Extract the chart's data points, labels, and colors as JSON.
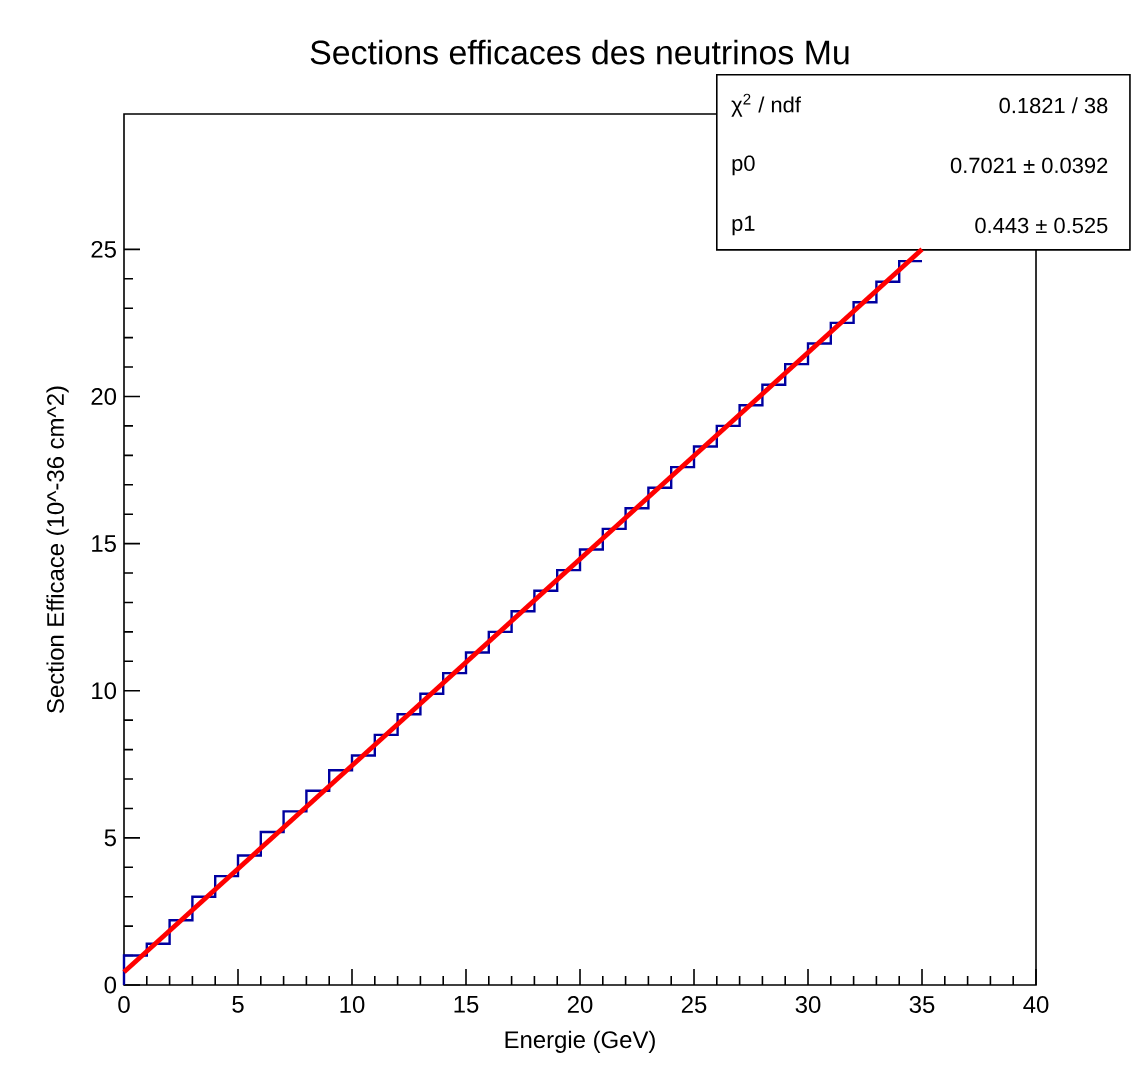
{
  "chart_data": {
    "type": "histogram",
    "title": "Sections efficaces des neutrinos Mu",
    "xlabel": "Energie (GeV)",
    "ylabel": "Section Efficace (10^-36 cm^2)",
    "bins": [
      0,
      1,
      2,
      3,
      4,
      5,
      6,
      7,
      8,
      9,
      10,
      11,
      12,
      13,
      14,
      15,
      16,
      17,
      18,
      19,
      20,
      21,
      22,
      23,
      24,
      25,
      26,
      27,
      28,
      29,
      30,
      31,
      32,
      33,
      34,
      35
    ],
    "series": [
      {
        "color": "#0000a0",
        "values": [
          1.0,
          1.4,
          2.2,
          3.0,
          3.7,
          4.4,
          5.2,
          5.9,
          6.6,
          7.3,
          7.8,
          8.5,
          9.2,
          9.9,
          10.6,
          11.3,
          12.0,
          12.7,
          13.4,
          14.1,
          14.8,
          15.5,
          16.2,
          16.9,
          17.6,
          18.3,
          19.0,
          19.7,
          20.4,
          21.1,
          21.8,
          22.5,
          23.2,
          23.9,
          24.6
        ]
      },
      {
        "type": "line",
        "color": "#ff0000",
        "x": [
          0,
          35
        ],
        "values": [
          0.44,
          25.0
        ]
      }
    ],
    "xlim": [
      0,
      40
    ],
    "ylim": [
      0,
      29.6
    ],
    "xticks": [
      0,
      5,
      10,
      15,
      20,
      25,
      30,
      35,
      40
    ],
    "yticks": [
      0,
      5,
      10,
      15,
      20,
      25
    ],
    "annotations": [
      "χ$^{2}$ / ndf",
      "0.1821 / 38",
      "p0",
      "0.7021 ± 0.0392",
      "p1",
      "0.443 ± 0.525"
    ]
  }
}
